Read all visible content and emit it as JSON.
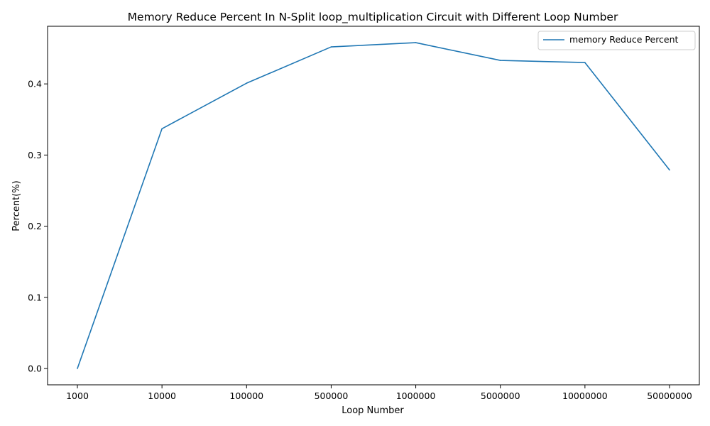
{
  "chart_data": {
    "type": "line",
    "title": "Memory Reduce Percent In N-Split loop_multiplication Circuit with Different Loop Number",
    "xlabel": "Loop Number",
    "ylabel": "Percent(%)",
    "categories": [
      "1000",
      "10000",
      "100000",
      "500000",
      "1000000",
      "5000000",
      "10000000",
      "50000000"
    ],
    "series": [
      {
        "name": "memory Reduce Percent",
        "color": "#1f77b4",
        "values": [
          0.0,
          0.337,
          0.401,
          0.452,
          0.458,
          0.433,
          0.43,
          0.279
        ]
      }
    ],
    "yticks": [
      "0.0",
      "0.1",
      "0.2",
      "0.3",
      "0.4"
    ],
    "ylim": [
      -0.023,
      0.481
    ],
    "grid": false,
    "legend": "top-right"
  }
}
